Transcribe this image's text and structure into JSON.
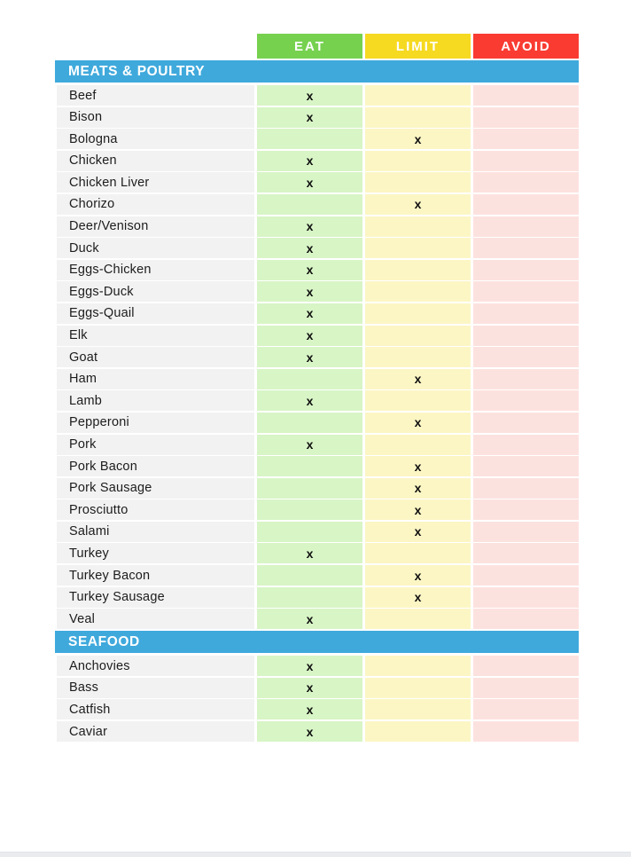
{
  "mark_glyph": "x",
  "legend": {
    "columns": [
      {
        "key": "eat",
        "label": "EAT"
      },
      {
        "key": "limit",
        "label": "LIMIT"
      },
      {
        "key": "avoid",
        "label": "AVOID"
      }
    ]
  },
  "sections": [
    {
      "title": "MEATS & POULTRY",
      "rows": [
        {
          "name": "Beef",
          "mark": "eat"
        },
        {
          "name": "Bison",
          "mark": "eat"
        },
        {
          "name": "Bologna",
          "mark": "limit"
        },
        {
          "name": "Chicken",
          "mark": "eat"
        },
        {
          "name": "Chicken Liver",
          "mark": "eat"
        },
        {
          "name": "Chorizo",
          "mark": "limit"
        },
        {
          "name": "Deer/Venison",
          "mark": "eat"
        },
        {
          "name": "Duck",
          "mark": "eat"
        },
        {
          "name": "Eggs-Chicken",
          "mark": "eat"
        },
        {
          "name": "Eggs-Duck",
          "mark": "eat"
        },
        {
          "name": "Eggs-Quail",
          "mark": "eat"
        },
        {
          "name": "Elk",
          "mark": "eat"
        },
        {
          "name": "Goat",
          "mark": "eat"
        },
        {
          "name": "Ham",
          "mark": "limit"
        },
        {
          "name": "Lamb",
          "mark": "eat"
        },
        {
          "name": "Pepperoni",
          "mark": "limit"
        },
        {
          "name": "Pork",
          "mark": "eat"
        },
        {
          "name": "Pork Bacon",
          "mark": "limit"
        },
        {
          "name": "Pork Sausage",
          "mark": "limit"
        },
        {
          "name": "Prosciutto",
          "mark": "limit"
        },
        {
          "name": "Salami",
          "mark": "limit"
        },
        {
          "name": "Turkey",
          "mark": "eat"
        },
        {
          "name": "Turkey Bacon",
          "mark": "limit"
        },
        {
          "name": "Turkey Sausage",
          "mark": "limit"
        },
        {
          "name": "Veal",
          "mark": "eat"
        }
      ]
    },
    {
      "title": "SEAFOOD",
      "rows": [
        {
          "name": "Anchovies",
          "mark": "eat"
        },
        {
          "name": "Bass",
          "mark": "eat"
        },
        {
          "name": "Catfish",
          "mark": "eat"
        },
        {
          "name": "Caviar",
          "mark": "eat"
        }
      ]
    }
  ],
  "colors": {
    "header_eat": "#76D14F",
    "header_limit": "#F6D921",
    "header_avoid": "#F93B32",
    "section_bar": "#3FA9DC",
    "cell_eat": "#D8F5C6",
    "cell_limit": "#FCF6C5",
    "cell_avoid": "#FCE2DF",
    "cell_name": "#F2F2F2",
    "mark": "#111111",
    "page_edge": "#E9EBEE"
  }
}
